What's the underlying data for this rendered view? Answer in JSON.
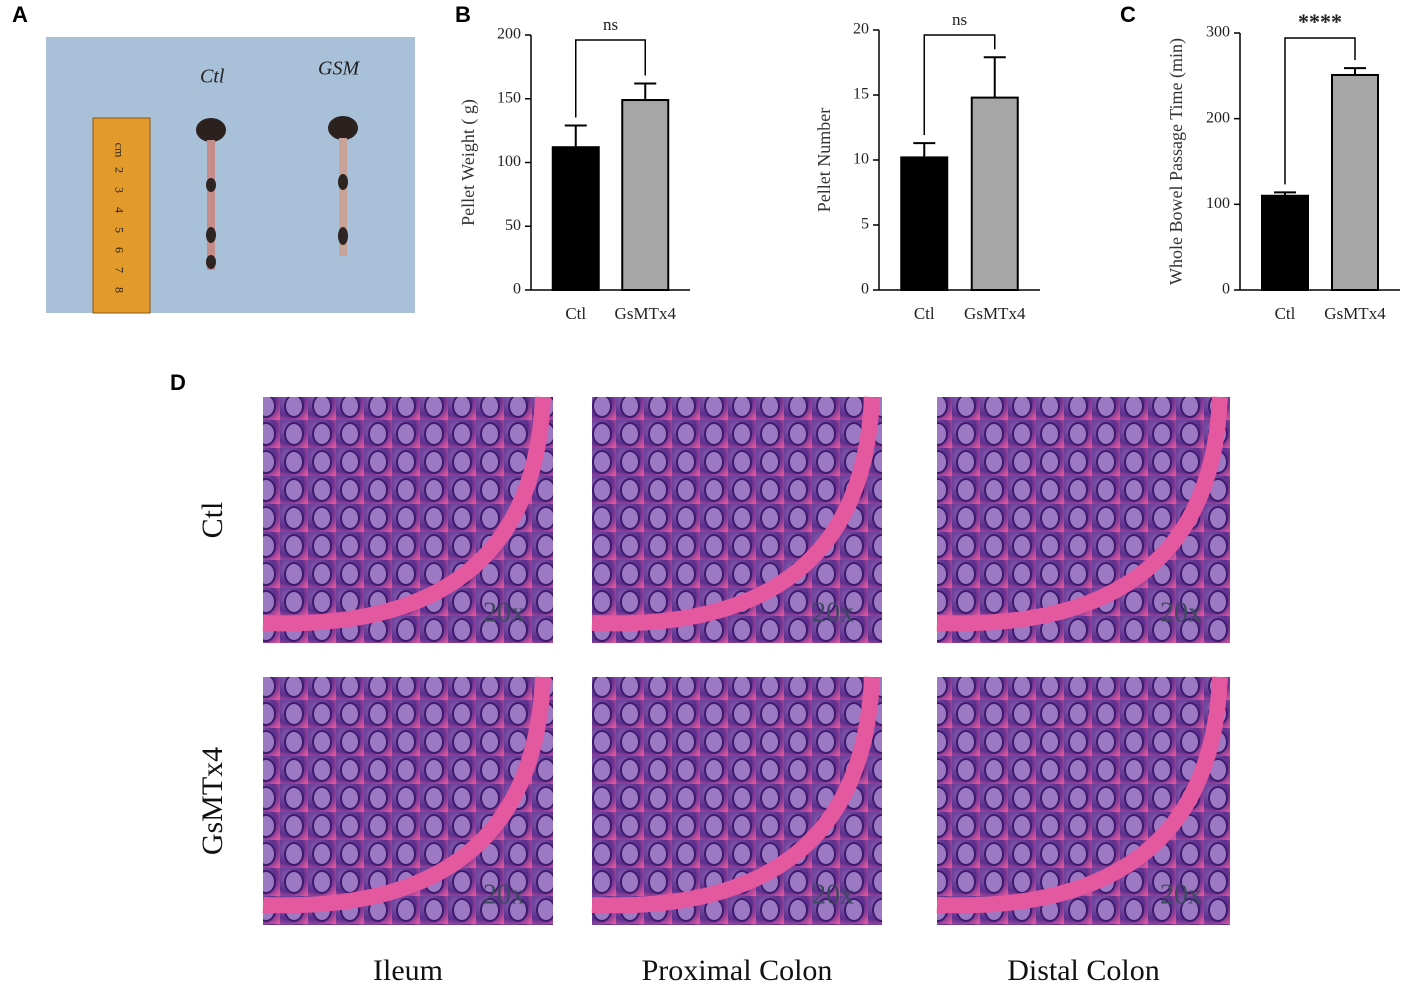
{
  "panel_labels": [
    "A",
    "B",
    "C",
    "D"
  ],
  "photo": {
    "labels": [
      "Ctl",
      "GSM"
    ],
    "ruler": [
      "cm",
      "2",
      "3",
      "4",
      "5",
      "6",
      "7",
      "8"
    ]
  },
  "histology": {
    "row_labels": [
      "Ctl",
      "GsMTx4"
    ],
    "column_labels": [
      "Ileum",
      "Proximal Colon",
      "Distal Colon"
    ],
    "magnification": "20x"
  },
  "chart_data": [
    {
      "type": "bar",
      "ylabel": "Pellet Weight ( g)",
      "categories": [
        "Ctl",
        "GsMTx4"
      ],
      "values": [
        112,
        149
      ],
      "errors": [
        17,
        13
      ],
      "colors": [
        "#000000",
        "#a6a6a6"
      ],
      "ylim": [
        0,
        200
      ],
      "yticks": [
        0,
        50,
        100,
        150,
        200
      ],
      "annotation": "ns"
    },
    {
      "type": "bar",
      "ylabel": "Pellet Number",
      "categories": [
        "Ctl",
        "GsMTx4"
      ],
      "values": [
        10.2,
        14.8
      ],
      "errors": [
        1.1,
        3.1
      ],
      "colors": [
        "#000000",
        "#a6a6a6"
      ],
      "ylim": [
        0,
        20
      ],
      "yticks": [
        0,
        5,
        10,
        15,
        20
      ],
      "annotation": "ns"
    },
    {
      "type": "bar",
      "ylabel": "Whole Bowel Passage Time (min)",
      "categories": [
        "Ctl",
        "GsMTx4"
      ],
      "values": [
        110,
        251
      ],
      "errors": [
        4,
        8
      ],
      "colors": [
        "#000000",
        "#a6a6a6"
      ],
      "ylim": [
        0,
        300
      ],
      "yticks": [
        0,
        100,
        200,
        300
      ],
      "annotation": "****"
    }
  ]
}
